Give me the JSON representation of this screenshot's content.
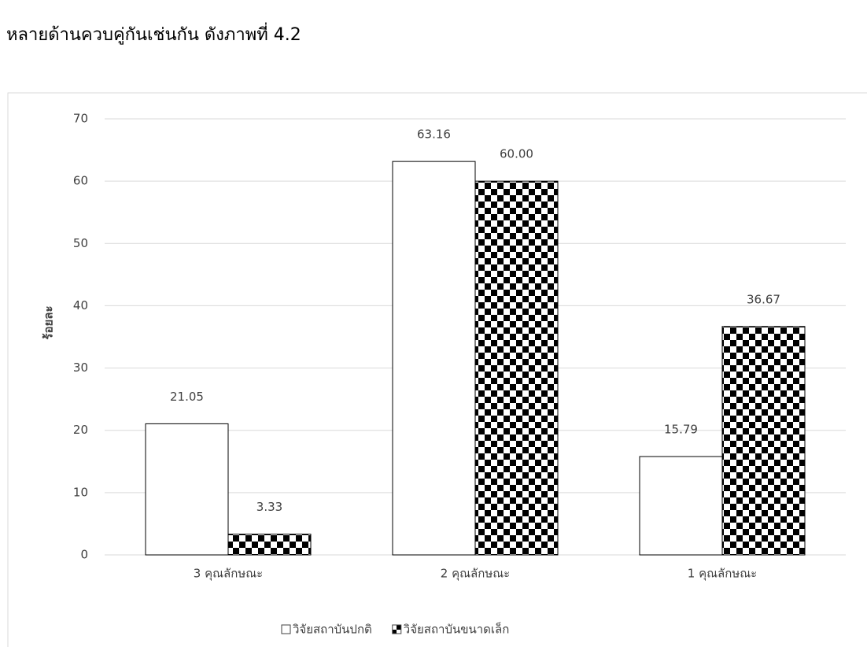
{
  "page_text": "หลายด้านควบคู่กันเช่นกัน ดังภาพที่ 4.2",
  "chart_data": {
    "type": "bar",
    "y_label": "ร้อยละ",
    "categories": [
      "3 คุณลักษณะ",
      "2 คุณลักษณะ",
      "1 คุณลักษณะ"
    ],
    "series": [
      {
        "name": "วิจัยสถาบันปกติ",
        "color": "#ffffff",
        "values": [
          21.05,
          63.16,
          15.79
        ],
        "value_labels": [
          "21.05",
          "63.16",
          "15.79"
        ]
      },
      {
        "name": "วิจัยสถาบันขนาดเล็ก",
        "color": "#000000",
        "pattern": "checker",
        "values": [
          3.33,
          60.0,
          36.67
        ],
        "value_labels": [
          "3.33",
          "60.00",
          "36.67"
        ]
      }
    ],
    "ylim": [
      0,
      70
    ],
    "yticks": [
      0,
      10,
      20,
      30,
      40,
      50,
      60,
      70
    ],
    "grid": true,
    "legend": "bottom"
  }
}
